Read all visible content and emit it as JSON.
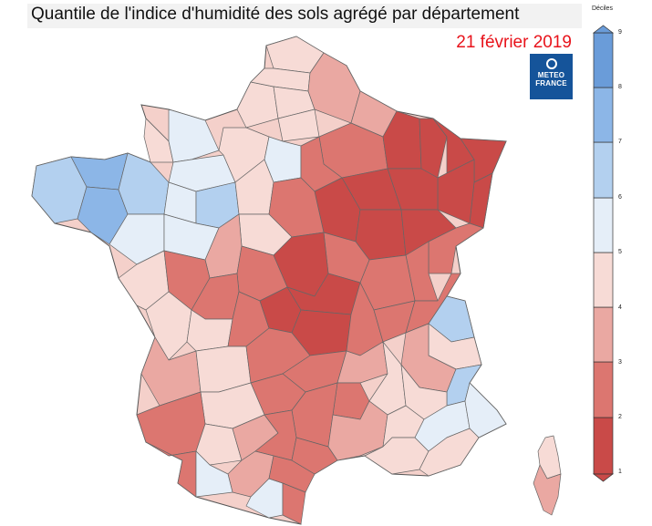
{
  "title": "Quantile de l'indice d'humidité des sols agrégé par département",
  "date": "21 février 2019",
  "logo": {
    "line1": "METEO",
    "line2": "FRANCE"
  },
  "legend": {
    "title": "Déciles",
    "ticks": [
      "1",
      "2",
      "3",
      "4",
      "5",
      "6",
      "7",
      "8",
      "9"
    ],
    "colors": [
      "#c94a48",
      "#dc7670",
      "#eaa8a2",
      "#f7dbd6",
      "#e5eef8",
      "#b3d0ef",
      "#8cb6e7",
      "#6a9cd9"
    ]
  },
  "map_colors": {
    "decile_1_2": "#c94a48",
    "decile_2_3": "#dc7670",
    "decile_3_4": "#eaa8a2",
    "decile_4_5": "#f7dbd6",
    "decile_5_6": "#e5eef8",
    "decile_6_7": "#b3d0ef",
    "decile_7_8": "#8cb6e7"
  }
}
